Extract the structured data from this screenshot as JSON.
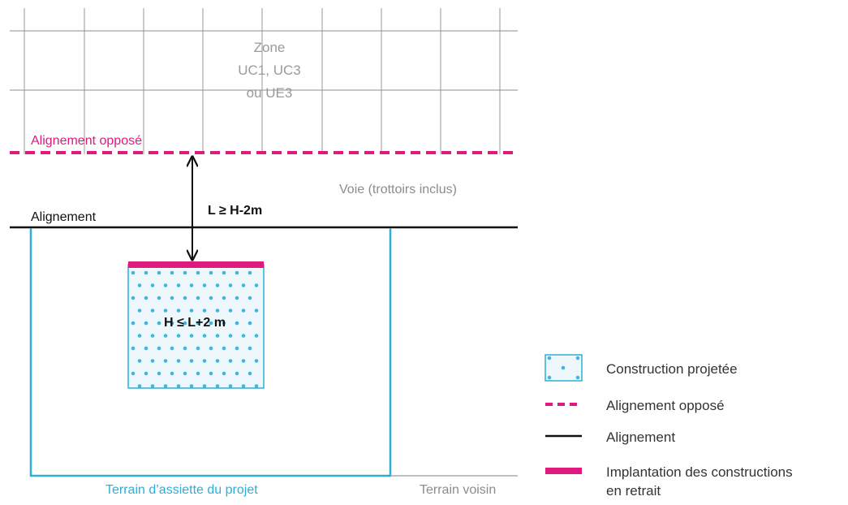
{
  "zone": {
    "line1": "Zone",
    "line2": "UC1, UC3",
    "line3": "ou UE3"
  },
  "labels": {
    "alignement_oppose": "Alignement opposé",
    "voie": "Voie (trottoirs inclus)",
    "alignement": "Alignement",
    "distance_rule": "L ≥ H-2m",
    "height_rule": "H ≤ L+2 m",
    "terrain_assiette": "Terrain d’assiette du projet",
    "terrain_voisin": "Terrain voisin"
  },
  "legend": {
    "items": [
      {
        "icon": "construction-swatch-icon",
        "line1": "Construction projetée",
        "line2": ""
      },
      {
        "icon": "dashed-magenta-line-icon",
        "line1": "Alignement opposé",
        "line2": ""
      },
      {
        "icon": "black-line-icon",
        "line1": "Alignement",
        "line2": ""
      },
      {
        "icon": "thick-magenta-line-icon",
        "line1": "Implantation des constructions",
        "line2": "en retrait"
      }
    ]
  },
  "colors": {
    "magenta": "#e0197d",
    "cyan": "#2eaed6",
    "dot": "#3fb6e2",
    "fill": "#eef8fc",
    "grid": "#8c8c8c",
    "gray_text": "#9a9a9a",
    "black": "#111111"
  }
}
